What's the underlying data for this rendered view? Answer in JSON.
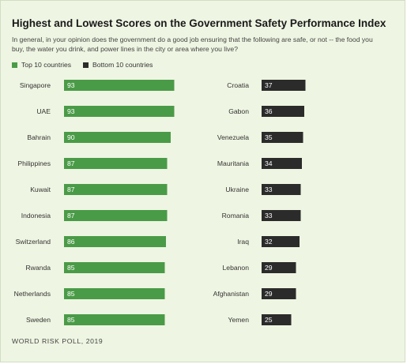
{
  "header": {
    "title": "Highest and Lowest Scores on the Government Safety Performance Index",
    "subtitle": "In general, in your opinion does the government do a good job ensuring that the following are safe, or not -- the food you buy, the water you drink, and power lines in the city or area where you live?"
  },
  "legend": {
    "top_label": "Top 10 countries",
    "bottom_label": "Bottom 10 countries"
  },
  "colors": {
    "top": "#4a9b47",
    "bottom": "#2b2b2b",
    "background": "#eef5e2"
  },
  "chart_data": [
    {
      "type": "bar",
      "orientation": "horizontal",
      "series_name": "Top 10 countries",
      "categories": [
        "Singapore",
        "UAE",
        "Bahrain",
        "Philippines",
        "Kuwait",
        "Indonesia",
        "Switzerland",
        "Rwanda",
        "Netherlands",
        "Sweden"
      ],
      "values": [
        93,
        93,
        90,
        87,
        87,
        87,
        86,
        85,
        85,
        85
      ],
      "data_labels": true
    },
    {
      "type": "bar",
      "orientation": "horizontal",
      "series_name": "Bottom 10 countries",
      "categories": [
        "Croatia",
        "Gabon",
        "Venezuela",
        "Mauritania",
        "Ukraine",
        "Romania",
        "Iraq",
        "Lebanon",
        "Afghanistan",
        "Yemen"
      ],
      "values": [
        37,
        36,
        35,
        34,
        33,
        33,
        32,
        29,
        29,
        25
      ],
      "data_labels": true
    }
  ],
  "footer": {
    "source": "WORLD RISK POLL, 2019"
  }
}
